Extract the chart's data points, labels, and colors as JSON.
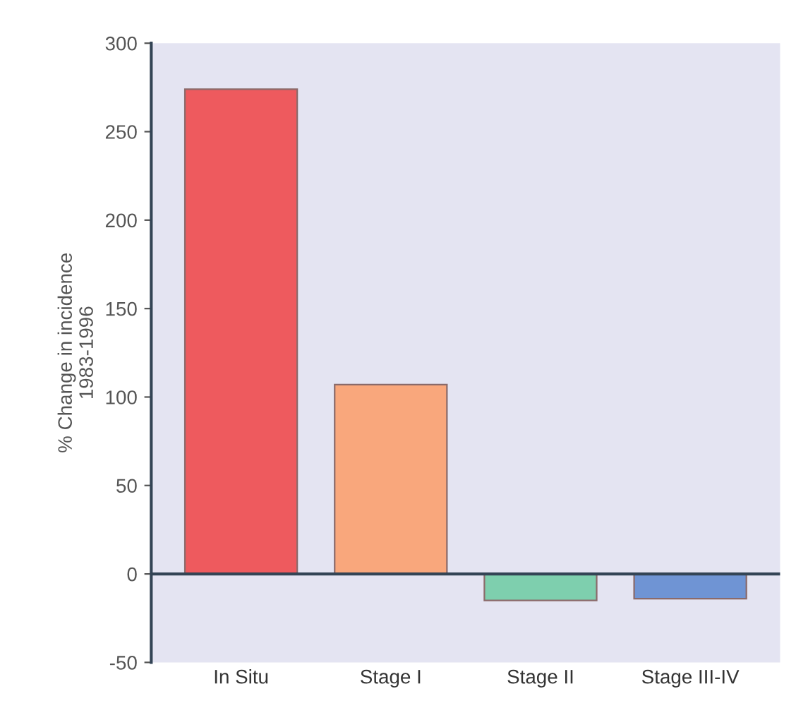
{
  "chart_data": {
    "type": "bar",
    "ylabel": "% Change in incidence\n1983-1996",
    "categories": [
      "In Situ",
      "Stage I",
      "Stage II",
      "Stage III-IV"
    ],
    "values": [
      274,
      107,
      -15,
      -14
    ],
    "colors": [
      "#ee5a5e",
      "#f9a77c",
      "#7ecfae",
      "#6f94d4"
    ],
    "ylim": [
      -50,
      300
    ],
    "yticks": [
      -50,
      0,
      50,
      100,
      150,
      200,
      250,
      300
    ],
    "grid": false,
    "ref_lines": [
      {
        "axis": "y",
        "value": 0,
        "color": "#334455"
      }
    ],
    "legend": false
  }
}
